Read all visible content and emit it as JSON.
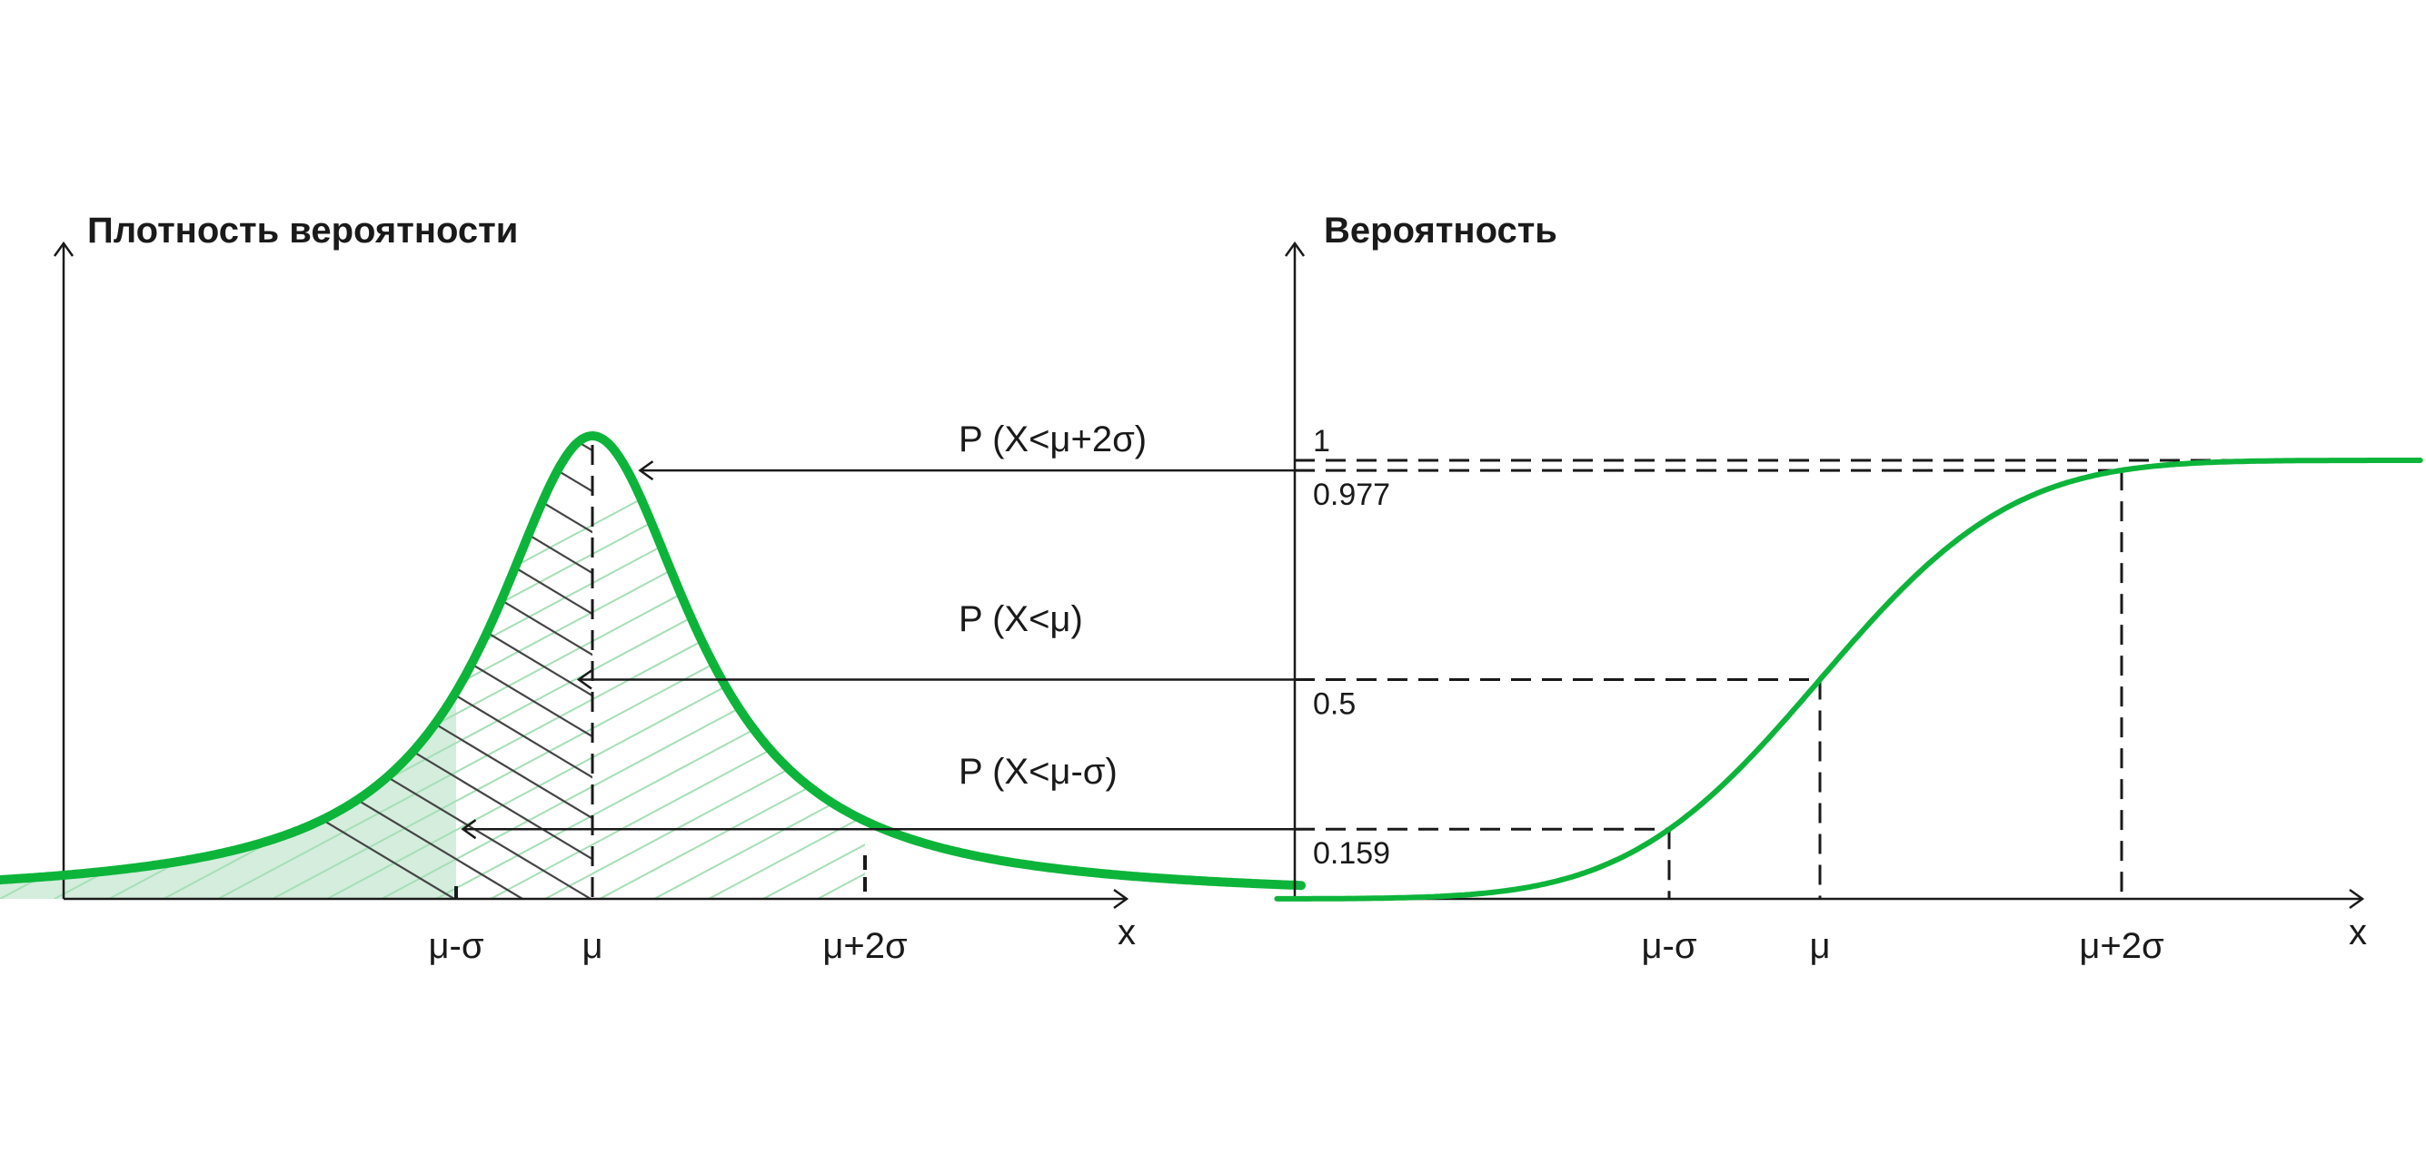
{
  "colors": {
    "curve": "#0db43a",
    "fill": "#d4eddd",
    "hatch_light": "#a6dfb6",
    "hatch_dark": "#444444",
    "axis": "#1a1a1a"
  },
  "chart_data": [
    {
      "type": "area",
      "title": "Плотность вероятности",
      "xlabel": "x",
      "ylabel": "",
      "x_ticks": [
        "μ-σ",
        "μ",
        "μ+2σ"
      ],
      "x_tick_values": [
        -1,
        0,
        2
      ],
      "x_range": [
        -5.3,
        5.2
      ],
      "shaded_regions": [
        {
          "to": -1,
          "style": "filled"
        },
        {
          "to": 0,
          "style": "dark-hatch"
        },
        {
          "to": 2,
          "style": "light-hatch"
        }
      ]
    },
    {
      "type": "line",
      "title": "Вероятность",
      "xlabel": "x",
      "ylabel": "",
      "x_ticks": [
        "μ-σ",
        "μ",
        "μ+2σ"
      ],
      "x_tick_values": [
        -1,
        0,
        2
      ],
      "y_ticks": [
        "1",
        "0.977",
        "0.5",
        "0.159"
      ],
      "y_tick_values": [
        1,
        0.977,
        0.5,
        0.159
      ],
      "ylim": [
        0,
        1
      ],
      "series": [
        {
          "x": [
            -3.6,
            -3,
            -2.5,
            -2,
            -1.5,
            -1,
            -0.5,
            0,
            0.5,
            1,
            1.5,
            2,
            2.5,
            3,
            3.5
          ],
          "y": [
            0.0002,
            0.0013,
            0.006,
            0.023,
            0.067,
            0.159,
            0.309,
            0.5,
            0.691,
            0.841,
            0.933,
            0.977,
            0.994,
            0.999,
            1.0
          ]
        }
      ]
    }
  ],
  "annotations": [
    {
      "text": "P (X<μ+2σ)",
      "value": 0.977
    },
    {
      "text": "P (X<μ)",
      "value": 0.5
    },
    {
      "text": "P (X<μ-σ)",
      "value": 0.159
    }
  ]
}
